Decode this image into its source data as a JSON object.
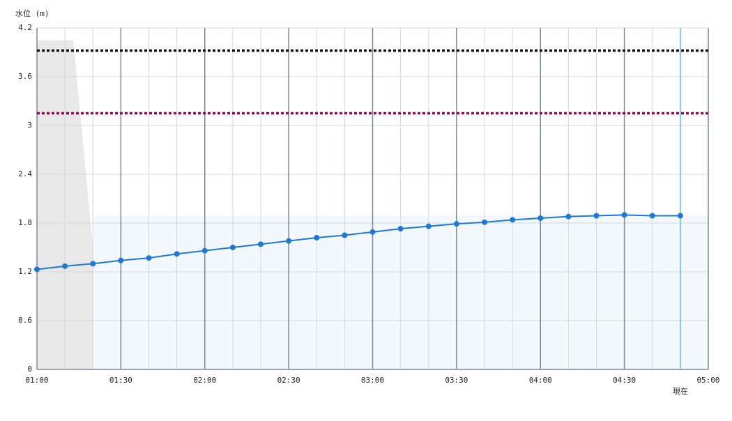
{
  "chart_data": {
    "type": "line",
    "y_axis_label": "水位 (m)",
    "x": [
      "01:00",
      "01:10",
      "01:20",
      "01:30",
      "01:40",
      "01:50",
      "02:00",
      "02:10",
      "02:20",
      "02:30",
      "02:40",
      "02:50",
      "03:00",
      "03:10",
      "03:20",
      "03:30",
      "03:40",
      "03:50",
      "04:00",
      "04:10",
      "04:20",
      "04:30",
      "04:40",
      "04:50"
    ],
    "series": [
      {
        "color": "#1f78d1",
        "values": [
          1.23,
          1.27,
          1.3,
          1.34,
          1.37,
          1.42,
          1.46,
          1.5,
          1.54,
          1.58,
          1.62,
          1.65,
          1.69,
          1.73,
          1.76,
          1.79,
          1.81,
          1.84,
          1.86,
          1.88,
          1.89,
          1.9,
          1.89,
          1.89
        ]
      }
    ],
    "xlim": [
      "01:00",
      "05:00"
    ],
    "xticks": [
      "01:00",
      "01:30",
      "02:00",
      "02:30",
      "03:00",
      "03:30",
      "04:00",
      "04:30",
      "05:00"
    ],
    "ylim": [
      0,
      4.2
    ],
    "yticks": [
      0,
      0.6,
      1.2,
      1.8,
      2.4,
      3,
      3.6,
      4.2
    ],
    "grid": true,
    "thresholds": [
      {
        "value": 3.92,
        "color": "#111111"
      },
      {
        "value": 3.15,
        "color": "#a0005a"
      }
    ],
    "now_label": "現在",
    "now_x": "04:50",
    "now_color": "#4fc3e0"
  }
}
